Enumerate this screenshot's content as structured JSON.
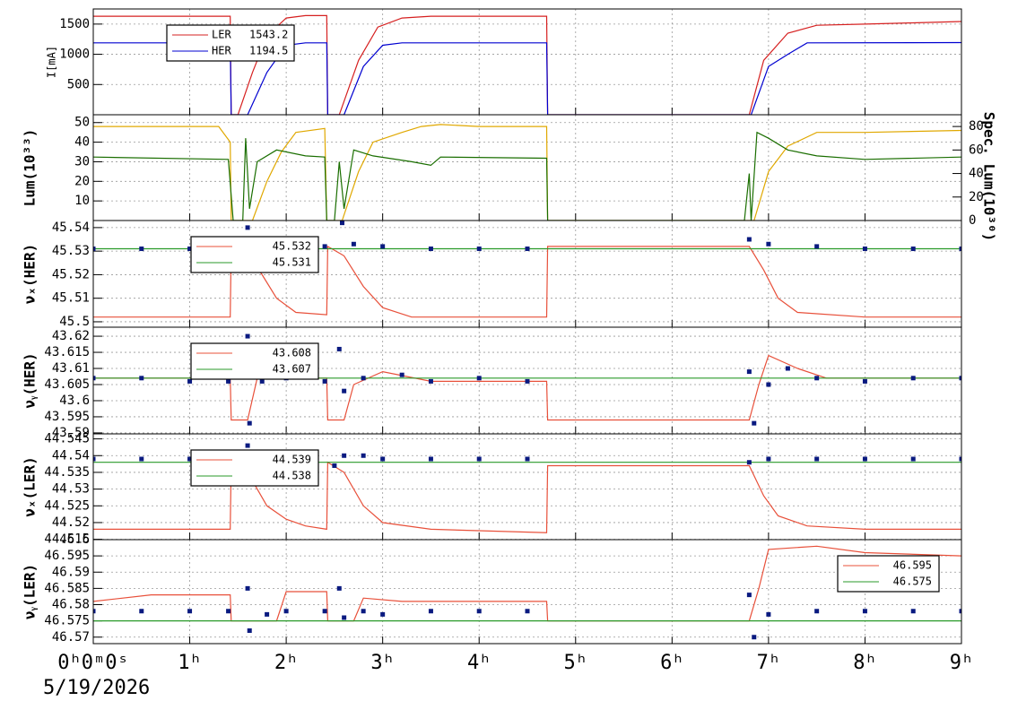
{
  "date": "5/19/2026",
  "chart_data": [
    {
      "type": "line",
      "ylabel": "I[mA]",
      "legend": "upper left",
      "grid": true,
      "xlim": [
        0,
        9
      ],
      "xticks": [
        0,
        1,
        2,
        3,
        4,
        5,
        6,
        7,
        8,
        9
      ],
      "ylim": [
        0,
        1750
      ],
      "yticks": [
        500,
        1000,
        1500
      ],
      "series": [
        {
          "name": "LER",
          "label": "1543.2",
          "color": "#d62020",
          "mode": "line",
          "x": [
            0,
            1.42,
            1.43,
            1.5,
            1.65,
            1.8,
            2.0,
            2.2,
            2.42,
            2.43,
            2.55,
            2.75,
            2.95,
            3.2,
            3.5,
            4.7,
            4.71,
            6.8,
            6.95,
            7.2,
            7.5,
            8,
            8.5,
            9
          ],
          "values": [
            1630,
            1630,
            0,
            0,
            700,
            1300,
            1600,
            1640,
            1640,
            0,
            0,
            900,
            1450,
            1600,
            1630,
            1630,
            0,
            0,
            900,
            1350,
            1480,
            1500,
            1520,
            1543
          ]
        },
        {
          "name": "HER",
          "label": "1194.5",
          "color": "#0000d0",
          "mode": "line",
          "x": [
            0,
            1.42,
            1.43,
            1.6,
            1.8,
            2.0,
            2.2,
            2.42,
            2.43,
            2.6,
            2.8,
            3.0,
            3.2,
            4.7,
            4.71,
            6.82,
            7.0,
            7.2,
            7.4,
            9
          ],
          "values": [
            1190,
            1190,
            0,
            0,
            700,
            1150,
            1190,
            1190,
            0,
            0,
            800,
            1150,
            1190,
            1190,
            0,
            0,
            800,
            1000,
            1190,
            1194
          ]
        }
      ]
    },
    {
      "type": "line",
      "ylabel": "Lum(10³³)",
      "y2label": "Spec. Lum(10³⁰)",
      "grid": true,
      "xlim": [
        0,
        9
      ],
      "xticks": [
        0,
        1,
        2,
        3,
        4,
        5,
        6,
        7,
        8,
        9
      ],
      "ylim": [
        0,
        54
      ],
      "yticks": [
        10,
        20,
        30,
        40,
        50
      ],
      "y2lim": [
        0,
        90
      ],
      "y2ticks": [
        0,
        20,
        40,
        60,
        80
      ],
      "series": [
        {
          "color": "#e0a800",
          "mode": "line",
          "x": [
            0,
            1.3,
            1.42,
            1.43,
            1.65,
            1.8,
            1.95,
            2.1,
            2.4,
            2.42,
            2.58,
            2.75,
            2.9,
            3.2,
            3.4,
            3.6,
            4.0,
            4.7,
            4.71,
            6.85,
            7.0,
            7.2,
            7.5,
            8.0,
            9
          ],
          "values": [
            48,
            48,
            40,
            0,
            0,
            20,
            35,
            45,
            47,
            0,
            0,
            25,
            40,
            45,
            48,
            49,
            48,
            48,
            0,
            0,
            25,
            38,
            45,
            45,
            46
          ]
        },
        {
          "color": "#1a6e00",
          "mode": "line",
          "axis": "y2",
          "x": [
            0,
            1.4,
            1.45,
            1.55,
            1.58,
            1.62,
            1.7,
            1.9,
            2.2,
            2.4,
            2.42,
            2.5,
            2.55,
            2.6,
            2.7,
            2.9,
            3.3,
            3.5,
            3.6,
            4.7,
            4.71,
            6.75,
            6.8,
            6.82,
            6.88,
            7.0,
            7.2,
            7.5,
            8,
            9
          ],
          "values": [
            54,
            52,
            0,
            0,
            70,
            10,
            50,
            60,
            55,
            54,
            0,
            0,
            50,
            10,
            60,
            55,
            50,
            47,
            54,
            53,
            0,
            0,
            40,
            0,
            75,
            70,
            60,
            55,
            52,
            54
          ]
        }
      ]
    },
    {
      "type": "line",
      "ylabel": "νₓ(HER)",
      "legend": "upper left",
      "grid": true,
      "xlim": [
        0,
        9
      ],
      "xticks": [
        0,
        1,
        2,
        3,
        4,
        5,
        6,
        7,
        8,
        9
      ],
      "ylim": [
        45.4977,
        45.543
      ],
      "yticks": [
        45.5,
        45.51,
        45.52,
        45.53,
        45.54
      ],
      "series": [
        {
          "name": "45.532",
          "color": "#e8503a",
          "mode": "line",
          "x": [
            0,
            1.42,
            1.43,
            1.6,
            1.75,
            1.9,
            2.1,
            2.42,
            2.43,
            2.6,
            2.8,
            3.0,
            3.3,
            4.7,
            4.71,
            6.8,
            6.95,
            7.1,
            7.3,
            8,
            9
          ],
          "values": [
            45.502,
            45.502,
            45.532,
            45.528,
            45.52,
            45.51,
            45.504,
            45.503,
            45.532,
            45.528,
            45.515,
            45.506,
            45.502,
            45.502,
            45.532,
            45.532,
            45.522,
            45.51,
            45.504,
            45.502,
            45.502
          ]
        },
        {
          "name": "45.531",
          "color": "#2a9a2a",
          "mode": "line",
          "x": [
            0,
            9
          ],
          "values": [
            45.531,
            45.531
          ]
        },
        {
          "color": "#0a1a80",
          "mode": "markers",
          "x": [
            0,
            0.5,
            1,
            1.4,
            1.6,
            1.7,
            2,
            2.4,
            2.58,
            2.7,
            3,
            3.5,
            4,
            4.5,
            6.8,
            7,
            7.5,
            8,
            8.5,
            9
          ],
          "values": [
            45.531,
            45.531,
            45.531,
            45.531,
            45.54,
            45.533,
            45.532,
            45.532,
            45.542,
            45.533,
            45.532,
            45.531,
            45.531,
            45.531,
            45.535,
            45.533,
            45.532,
            45.531,
            45.531,
            45.531
          ]
        }
      ]
    },
    {
      "type": "line",
      "ylabel": "νᵧ(HER)",
      "legend": "upper left",
      "grid": true,
      "xlim": [
        0,
        9
      ],
      "xticks": [
        0,
        1,
        2,
        3,
        4,
        5,
        6,
        7,
        8,
        9
      ],
      "ylim": [
        43.5897,
        43.6228
      ],
      "yticks": [
        43.59,
        43.595,
        43.6,
        43.605,
        43.61,
        43.615,
        43.62
      ],
      "series": [
        {
          "name": "43.608",
          "color": "#e8503a",
          "mode": "line",
          "x": [
            0,
            1.42,
            1.43,
            1.6,
            1.7,
            1.9,
            2.2,
            2.42,
            2.43,
            2.6,
            2.7,
            3.0,
            3.5,
            4.7,
            4.71,
            6.8,
            6.9,
            7.0,
            7.3,
            7.6,
            9
          ],
          "values": [
            43.607,
            43.607,
            43.594,
            43.594,
            43.607,
            43.61,
            43.607,
            43.607,
            43.594,
            43.594,
            43.605,
            43.609,
            43.606,
            43.606,
            43.594,
            43.594,
            43.605,
            43.614,
            43.61,
            43.607,
            43.607
          ]
        },
        {
          "name": "43.607",
          "color": "#2a9a2a",
          "mode": "line",
          "x": [
            0,
            9
          ],
          "values": [
            43.607,
            43.607
          ]
        },
        {
          "color": "#0a1a80",
          "mode": "markers",
          "x": [
            0,
            0.5,
            1,
            1.4,
            1.6,
            1.62,
            1.75,
            2,
            2.4,
            2.55,
            2.6,
            2.8,
            3.2,
            3.5,
            4,
            4.5,
            6.8,
            6.85,
            7,
            7.2,
            7.5,
            8,
            8.5,
            9
          ],
          "values": [
            43.607,
            43.607,
            43.606,
            43.606,
            43.62,
            43.593,
            43.606,
            43.607,
            43.606,
            43.616,
            43.603,
            43.607,
            43.608,
            43.606,
            43.607,
            43.606,
            43.609,
            43.593,
            43.605,
            43.61,
            43.607,
            43.606,
            43.607,
            43.607
          ]
        }
      ]
    },
    {
      "type": "line",
      "ylabel": "νₓ(LER)",
      "legend": "upper left",
      "grid": true,
      "xlim": [
        0,
        9
      ],
      "xticks": [
        0,
        1,
        2,
        3,
        4,
        5,
        6,
        7,
        8,
        9
      ],
      "ylim": [
        44.5149,
        44.5465
      ],
      "yticks": [
        44.515,
        44.52,
        44.525,
        44.53,
        44.535,
        44.54,
        44.545
      ],
      "series": [
        {
          "name": "44.539",
          "color": "#e8503a",
          "mode": "line",
          "x": [
            0,
            1.42,
            1.43,
            1.6,
            1.8,
            2.0,
            2.2,
            2.42,
            2.43,
            2.6,
            2.8,
            3.0,
            3.5,
            4.7,
            4.71,
            6.8,
            6.95,
            7.1,
            7.4,
            8,
            9
          ],
          "values": [
            44.518,
            44.518,
            44.538,
            44.535,
            44.525,
            44.521,
            44.519,
            44.518,
            44.538,
            44.535,
            44.525,
            44.52,
            44.518,
            44.517,
            44.537,
            44.537,
            44.528,
            44.522,
            44.519,
            44.518,
            44.518
          ]
        },
        {
          "name": "44.538",
          "color": "#2a9a2a",
          "mode": "line",
          "x": [
            0,
            9
          ],
          "values": [
            44.538,
            44.538
          ]
        },
        {
          "color": "#0a1a80",
          "mode": "markers",
          "x": [
            0,
            0.5,
            1,
            1.4,
            1.6,
            1.8,
            2.2,
            2.5,
            2.6,
            2.8,
            3,
            3.5,
            4,
            4.5,
            6.8,
            7,
            7.5,
            8,
            8.5,
            9
          ],
          "values": [
            44.539,
            44.539,
            44.539,
            44.539,
            44.543,
            44.539,
            44.539,
            44.537,
            44.54,
            44.54,
            44.539,
            44.539,
            44.539,
            44.539,
            44.538,
            44.539,
            44.539,
            44.539,
            44.539,
            44.539
          ]
        }
      ]
    },
    {
      "type": "line",
      "ylabel": "νᵧ(LER)",
      "legend": "upper right",
      "grid": true,
      "xlim": [
        0,
        9
      ],
      "xticks": [
        {
          "value": 0,
          "label": "0ʰ0ᵐ0ˢ"
        },
        {
          "value": 1,
          "label": "1ʰ"
        },
        {
          "value": 2,
          "label": "2ʰ"
        },
        {
          "value": 3,
          "label": "3ʰ"
        },
        {
          "value": 4,
          "label": "4ʰ"
        },
        {
          "value": 5,
          "label": "5ʰ"
        },
        {
          "value": 6,
          "label": "6ʰ"
        },
        {
          "value": 7,
          "label": "7ʰ"
        },
        {
          "value": 8,
          "label": "8ʰ"
        },
        {
          "value": 9,
          "label": "9ʰ"
        }
      ],
      "ylim": [
        46.568,
        46.6
      ],
      "yticks": [
        46.57,
        46.575,
        46.58,
        46.585,
        46.59,
        46.595,
        46.6
      ],
      "series": [
        {
          "name": "46.595",
          "color": "#e8503a",
          "mode": "line",
          "x": [
            0,
            0.6,
            1.42,
            1.43,
            1.9,
            2.0,
            2.42,
            2.43,
            2.7,
            2.8,
            3.2,
            4.7,
            4.71,
            6.8,
            6.9,
            7.0,
            7.5,
            8,
            9
          ],
          "values": [
            46.581,
            46.583,
            46.583,
            46.575,
            46.575,
            46.584,
            46.584,
            46.575,
            46.575,
            46.582,
            46.581,
            46.581,
            46.575,
            46.575,
            46.585,
            46.597,
            46.598,
            46.596,
            46.595
          ]
        },
        {
          "name": "46.575",
          "color": "#2a9a2a",
          "mode": "line",
          "x": [
            0,
            9
          ],
          "values": [
            46.575,
            46.575
          ]
        },
        {
          "color": "#0a1a80",
          "mode": "markers",
          "x": [
            0,
            0.5,
            1,
            1.4,
            1.6,
            1.62,
            1.8,
            2,
            2.4,
            2.55,
            2.6,
            2.8,
            3,
            3.5,
            4,
            4.5,
            6.8,
            6.85,
            7,
            7.5,
            8,
            8.5,
            9
          ],
          "values": [
            46.578,
            46.578,
            46.578,
            46.578,
            46.585,
            46.572,
            46.577,
            46.578,
            46.578,
            46.585,
            46.576,
            46.578,
            46.577,
            46.578,
            46.578,
            46.578,
            46.583,
            46.57,
            46.577,
            46.578,
            46.578,
            46.578,
            46.578
          ]
        }
      ]
    }
  ]
}
